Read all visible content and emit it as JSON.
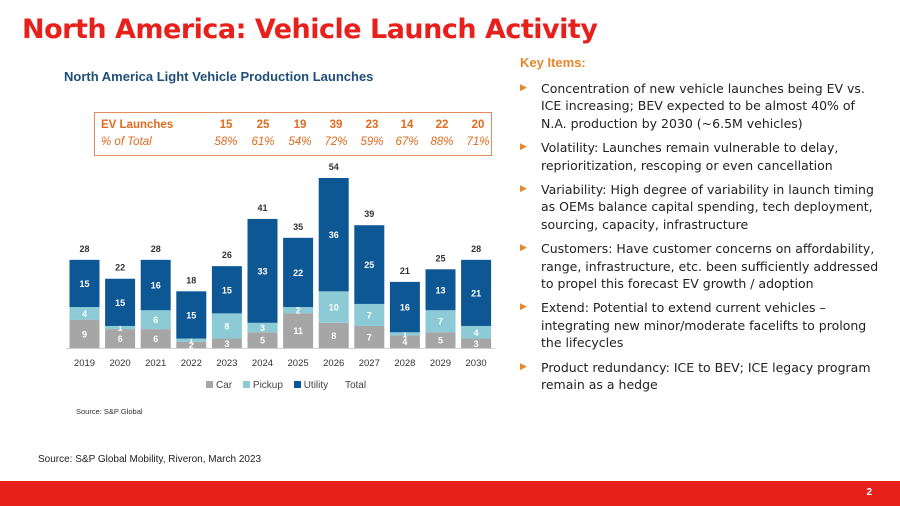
{
  "slide": {
    "title": "North America: Vehicle Launch Activity",
    "source": "Source:  S&P Global Mobility, Riveron, March 2023",
    "page_number": "2"
  },
  "ev_table": {
    "row1_label": "EV Launches",
    "row2_label": "% of Total",
    "launches": [
      "15",
      "25",
      "19",
      "39",
      "23",
      "14",
      "22",
      "20"
    ],
    "percents": [
      "58%",
      "61%",
      "54%",
      "72%",
      "59%",
      "67%",
      "88%",
      "71%"
    ]
  },
  "chart_source": "Source: S&P Global",
  "colors": {
    "car": "#a6a6a6",
    "pickup": "#8ccbd5",
    "utility": "#0d5794",
    "title_red": "#e8201c",
    "accent_orange": "#e8862a"
  },
  "chart_data": {
    "type": "bar",
    "stacked": true,
    "title": "North America Light Vehicle Production Launches",
    "categories": [
      "2019",
      "2020",
      "2021",
      "2022",
      "2023",
      "2024",
      "2025",
      "2026",
      "2027",
      "2028",
      "2029",
      "2030"
    ],
    "series": [
      {
        "name": "Car",
        "values": [
          9,
          6,
          6,
          2,
          3,
          5,
          11,
          8,
          7,
          4,
          5,
          3
        ]
      },
      {
        "name": "Pickup",
        "values": [
          4,
          1,
          6,
          1,
          8,
          3,
          2,
          10,
          7,
          1,
          7,
          4
        ]
      },
      {
        "name": "Utility",
        "values": [
          15,
          15,
          16,
          15,
          15,
          33,
          22,
          36,
          25,
          16,
          13,
          21
        ]
      }
    ],
    "totals": [
      28,
      22,
      28,
      18,
      26,
      41,
      35,
      54,
      39,
      21,
      25,
      28
    ],
    "legend": [
      "Car",
      "Pickup",
      "Utility",
      "Total"
    ],
    "legend_position": "bottom",
    "xlabel": "",
    "ylabel": "",
    "ylim": [
      0,
      54
    ]
  },
  "key_items": {
    "title": "Key Items:",
    "bullets": [
      "Concentration of new vehicle launches being EV vs. ICE increasing; BEV expected to be almost 40% of N.A. production by 2030 (~6.5M vehicles)",
      "Volatility: Launches remain vulnerable to delay, reprioritization, rescoping or even cancellation",
      "Variability: High degree of variability in launch timing as OEMs balance capital spending, tech deployment, sourcing, capacity, infrastructure",
      "Customers: Have customer concerns on affordability, range, infrastructure, etc. been sufficiently addressed to propel this forecast EV growth / adoption",
      "Extend: Potential to extend current vehicles – integrating new minor/moderate facelifts to prolong the lifecycles",
      "Product redundancy: ICE to BEV; ICE legacy program remain as a hedge"
    ]
  }
}
